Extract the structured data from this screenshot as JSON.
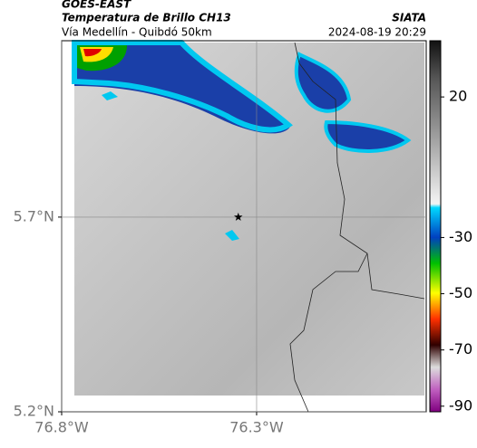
{
  "header": {
    "source": "GOES-EAST",
    "product": "Temperatura de Brillo CH13",
    "route": "Vía Medellín - Quibdó 50km",
    "agency": "SIATA",
    "datetime": "2024-08-19 20:29"
  },
  "map": {
    "xlim": [
      -76.8,
      -75.865
    ],
    "ylim": [
      5.2,
      6.153
    ],
    "xticks": [
      {
        "value": -76.8,
        "label": "76.8°W"
      },
      {
        "value": -76.3,
        "label": "76.3°W"
      }
    ],
    "yticks": [
      {
        "value": 5.2,
        "label": "5.2°N"
      },
      {
        "value": 5.7,
        "label": "5.7°N"
      }
    ],
    "grid": true,
    "marker": {
      "lon": -76.347,
      "lat": 5.7
    }
  },
  "colorbar": {
    "lim": [
      -92,
      40
    ],
    "ticks": [
      20,
      -30,
      -50,
      -70,
      -90
    ]
  }
}
